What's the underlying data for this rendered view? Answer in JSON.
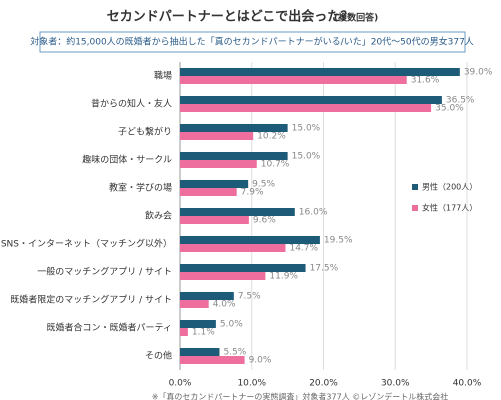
{
  "chart_data": {
    "type": "bar",
    "orientation": "horizontal",
    "title": "セカンドパートナーとはどこで出会った？",
    "title_note": "(複数回答)",
    "subtitle": "対象者：約15,000人の既婚者から抽出した「真のセカンドパートナーがいる/いた」20代～50代の男女377人",
    "categories": [
      "職場",
      "昔からの知人・友人",
      "子ども繋がり",
      "趣味の団体・サークル",
      "教室・学びの場",
      "飲み会",
      "SNS・インターネット（マッチング以外）",
      "一般のマッチングアプリ / サイト",
      "既婚者限定のマッチングアプリ / サイト",
      "既婚者合コン・既婚者パーティ",
      "その他"
    ],
    "series": [
      {
        "name": "男性（200人）",
        "color": "#1d5b78",
        "values": [
          39.0,
          36.5,
          15.0,
          15.0,
          9.5,
          16.0,
          19.5,
          17.5,
          7.5,
          5.0,
          5.5
        ],
        "value_labels": [
          "39.0%",
          "36.5%",
          "15.0%",
          "15.0%",
          "9.5%",
          "16.0%",
          "19.5%",
          "17.5%",
          "7.5%",
          "5.0%",
          "5.5%"
        ]
      },
      {
        "name": "女性（177人）",
        "color": "#ee6f9d",
        "values": [
          31.6,
          35.0,
          10.2,
          10.7,
          7.9,
          9.6,
          14.7,
          11.9,
          4.0,
          1.1,
          9.0
        ],
        "value_labels": [
          "31.6%",
          "35.0%",
          "10.2%",
          "10.7%",
          "7.9%",
          "9.6%",
          "14.7%",
          "11.9%",
          "4.0%",
          "1.1%",
          "9.0%"
        ]
      }
    ],
    "xlim": [
      0,
      40
    ],
    "xticks": [
      {
        "value": 0,
        "label": "0.0%"
      },
      {
        "value": 10,
        "label": "10.0%"
      },
      {
        "value": 20,
        "label": "20.0%"
      },
      {
        "value": 30,
        "label": "30.0%"
      },
      {
        "value": 40,
        "label": "40.0%"
      }
    ],
    "grid": true,
    "legend_position": "right",
    "footer": "※「真のセカンドパートナーの実態調査」対象者377人 ©レゾンデートル株式会社"
  }
}
